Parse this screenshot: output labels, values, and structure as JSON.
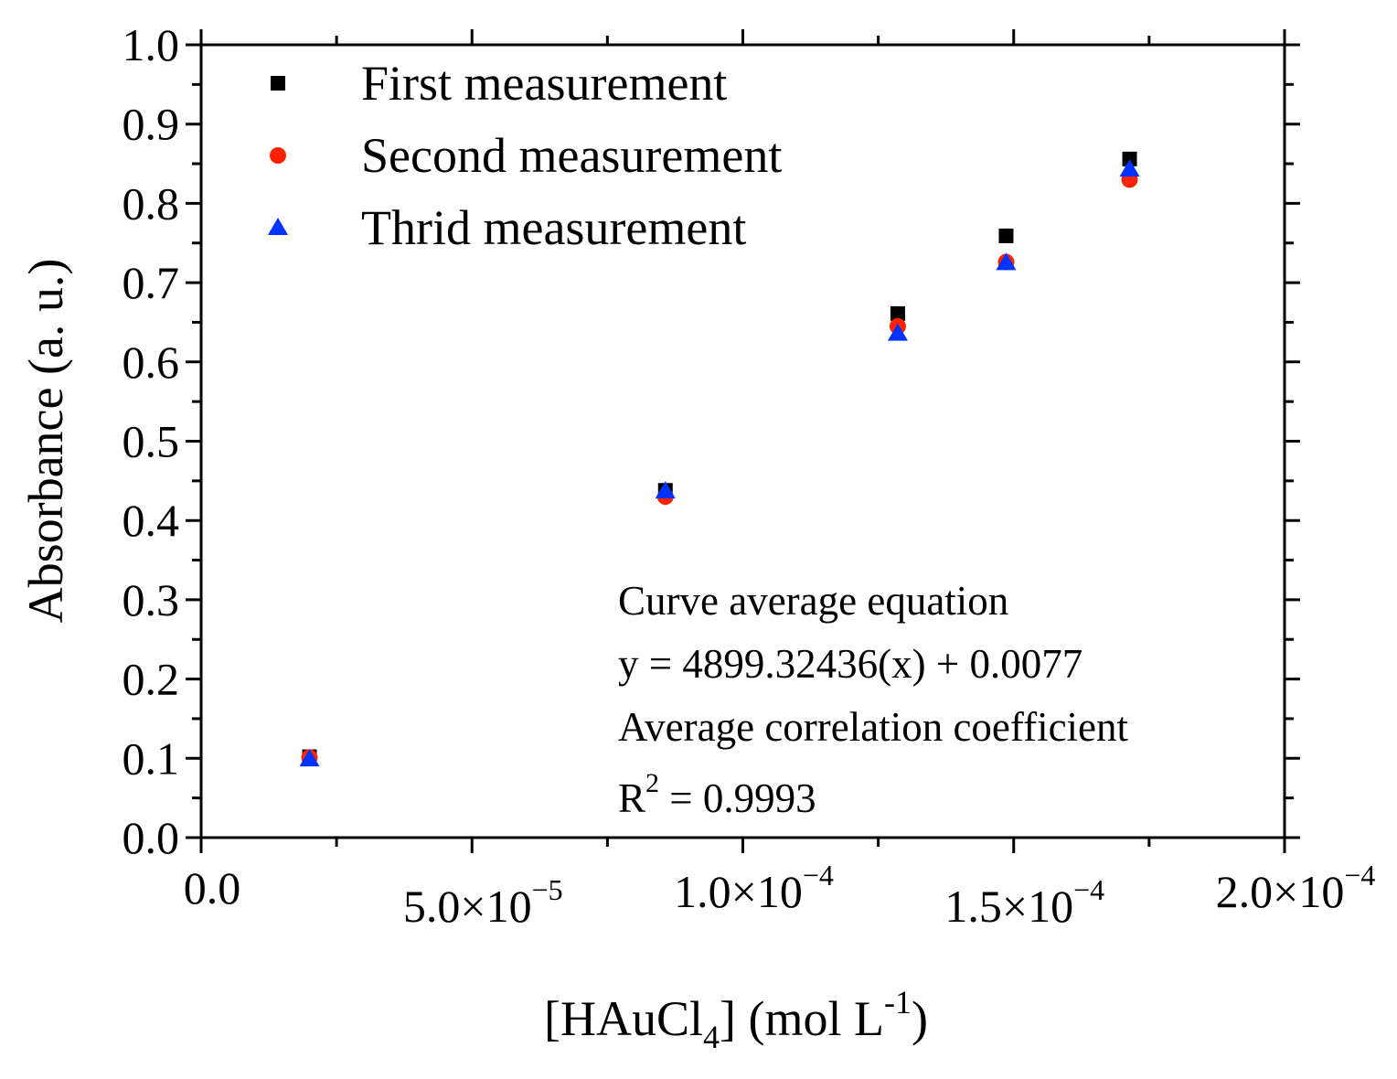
{
  "chart_data": {
    "type": "scatter",
    "title": "",
    "xlabel": "[HAuCl4] (mol L-1)",
    "xlabel_parts": {
      "open": "[HAuCl",
      "sub": "4",
      "mid": "] (mol L",
      "sup": "-1",
      "close": ")"
    },
    "ylabel": "Absorbance (a. u.)",
    "xlim": [
      0,
      0.0002
    ],
    "ylim": [
      0,
      1.0
    ],
    "x_ticks": [
      {
        "value": 0,
        "mantissa": "0.0",
        "exp": ""
      },
      {
        "value": 5e-05,
        "mantissa": "5.0×10",
        "exp": "−5"
      },
      {
        "value": 0.0001,
        "mantissa": "1.0×10",
        "exp": "−4"
      },
      {
        "value": 0.00015,
        "mantissa": "1.5×10",
        "exp": "−4"
      },
      {
        "value": 0.0002,
        "mantissa": "2.0×10",
        "exp": "−4"
      }
    ],
    "y_ticks": [
      0.0,
      0.1,
      0.2,
      0.3,
      0.4,
      0.5,
      0.6,
      0.7,
      0.8,
      0.9,
      1.0
    ],
    "y_tick_labels": [
      "0.0",
      "0.1",
      "0.2",
      "0.3",
      "0.4",
      "0.5",
      "0.6",
      "0.7",
      "0.8",
      "0.9",
      "1.0"
    ],
    "grid": false,
    "legend_position": "top-left",
    "series": [
      {
        "name": "First measurement",
        "marker": "square",
        "color": "#000000",
        "points": [
          [
            2e-05,
            0.102
          ],
          [
            8.57e-05,
            0.438
          ],
          [
            0.0001286,
            0.661
          ],
          [
            0.0001486,
            0.759
          ],
          [
            0.0001714,
            0.856
          ]
        ]
      },
      {
        "name": "Second measurement",
        "marker": "circle",
        "color": "#ff2200",
        "points": [
          [
            2e-05,
            0.101
          ],
          [
            8.57e-05,
            0.43
          ],
          [
            0.0001286,
            0.645
          ],
          [
            0.0001486,
            0.726
          ],
          [
            0.0001714,
            0.83
          ]
        ]
      },
      {
        "name": "Thrid measurement",
        "marker": "triangle",
        "color": "#0033ff",
        "points": [
          [
            2e-05,
            0.099
          ],
          [
            8.57e-05,
            0.437
          ],
          [
            0.0001286,
            0.636
          ],
          [
            0.0001486,
            0.725
          ],
          [
            0.0001714,
            0.843
          ]
        ]
      }
    ],
    "annotation": {
      "line1": "Curve average equation",
      "line2": "y = 4899.32436(x) + 0.0077",
      "line3": "Average correlation coefficient",
      "line4_base": "R",
      "line4_sup": "2",
      "line4_rest": " = 0.9993"
    }
  }
}
